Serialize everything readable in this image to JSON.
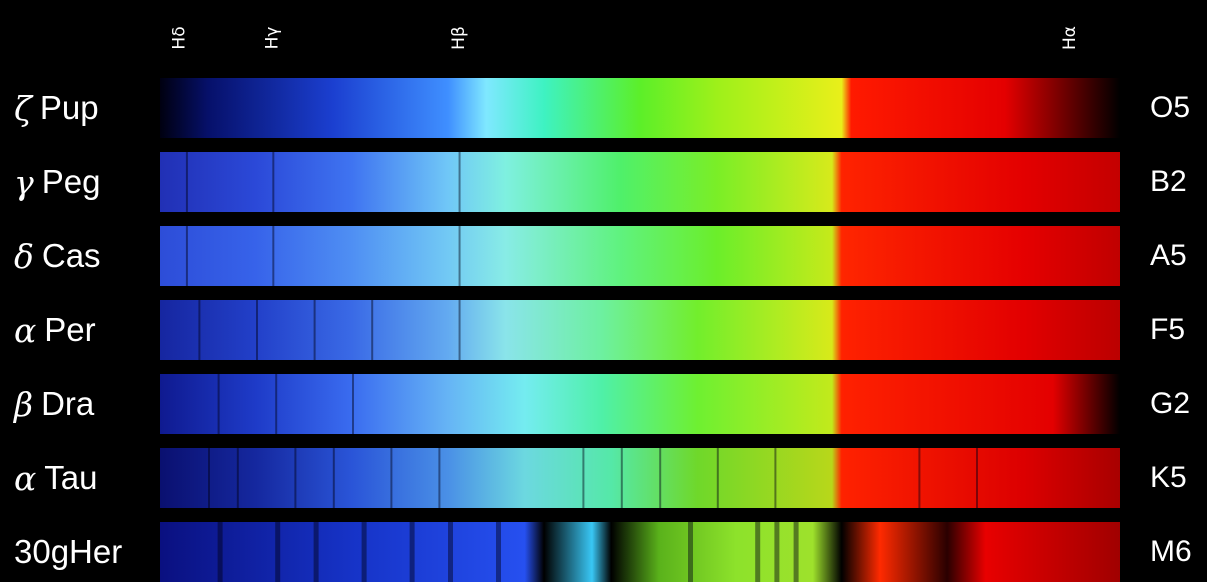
{
  "line_labels": [
    {
      "id": "hdelta",
      "text": "Hδ",
      "pos": 0.02
    },
    {
      "id": "hgamma",
      "text": "Hγ",
      "pos": 0.117
    },
    {
      "id": "hbeta",
      "text": "Hβ",
      "pos": 0.311
    },
    {
      "id": "halpha",
      "text": "Hα",
      "pos": 0.948
    }
  ],
  "stars": [
    {
      "symbol": "ζ",
      "name": "Pup",
      "class": "O5",
      "stops": [
        "#000010",
        "#06106a",
        "#1b3fd0",
        "#3f8fff",
        "#7fe8ff",
        "#3ef2c2",
        "#5cef29",
        "#9ef01a",
        "#e9ef1a",
        "#ff1a00",
        "#e40000",
        "#000000"
      ],
      "offsets": [
        0,
        0.05,
        0.18,
        0.3,
        0.34,
        0.4,
        0.5,
        0.58,
        0.71,
        0.72,
        0.88,
        1
      ],
      "lines": [],
      "dark": 0
    },
    {
      "symbol": "γ",
      "name": "Peg",
      "class": "B2",
      "stops": [
        "#2130b5",
        "#2b49d8",
        "#3f74f1",
        "#70c7f7",
        "#7ff0e0",
        "#4ff06a",
        "#7aee27",
        "#d7ea1b",
        "#ff2300",
        "#e30000",
        "#c40000"
      ],
      "offsets": [
        0,
        0.1,
        0.2,
        0.3,
        0.36,
        0.48,
        0.58,
        0.7,
        0.71,
        0.9,
        1
      ],
      "lines": [
        0.027,
        0.117,
        0.311
      ],
      "dark": 0
    },
    {
      "symbol": "δ",
      "name": "Cas",
      "class": "A5",
      "stops": [
        "#2d4dd8",
        "#3763ea",
        "#4f8ff3",
        "#72c9f4",
        "#88ece6",
        "#5ff27e",
        "#6bee2a",
        "#c6ea1a",
        "#ff2600",
        "#e50000",
        "#c00000"
      ],
      "offsets": [
        0,
        0.1,
        0.2,
        0.3,
        0.36,
        0.48,
        0.58,
        0.7,
        0.71,
        0.9,
        1
      ],
      "lines": [
        0.027,
        0.117,
        0.311
      ],
      "dark": 0
    },
    {
      "symbol": "α",
      "name": "Per",
      "class": "F5",
      "stops": [
        "#1626a0",
        "#2240c9",
        "#3a6ae6",
        "#63aaf0",
        "#8ae4ea",
        "#6df0a0",
        "#72ee2c",
        "#d8ea1a",
        "#ff2200",
        "#e20000",
        "#bb0000"
      ],
      "offsets": [
        0,
        0.1,
        0.2,
        0.3,
        0.36,
        0.46,
        0.56,
        0.7,
        0.71,
        0.9,
        1
      ],
      "lines": [
        0.04,
        0.1,
        0.16,
        0.22,
        0.311
      ],
      "dark": 0
    },
    {
      "symbol": "β",
      "name": "Dra",
      "class": "G2",
      "stops": [
        "#0f1a90",
        "#1e3bc8",
        "#3a6cf0",
        "#66b4f5",
        "#74ecf0",
        "#4ff0a8",
        "#6ef031",
        "#c2ea1b",
        "#ff2100",
        "#e30000",
        "#000000"
      ],
      "offsets": [
        0,
        0.1,
        0.2,
        0.3,
        0.38,
        0.46,
        0.56,
        0.7,
        0.71,
        0.93,
        1
      ],
      "lines": [
        0.06,
        0.12,
        0.2
      ],
      "dark": 0
    },
    {
      "symbol": "α",
      "name": "Tau",
      "class": "K5",
      "stops": [
        "#0a1070",
        "#15289f",
        "#2a55d8",
        "#4a90e6",
        "#6cd8e0",
        "#55e8a8",
        "#6fd82a",
        "#b8d71a",
        "#ff2200",
        "#dc0000",
        "#a80000"
      ],
      "offsets": [
        0,
        0.1,
        0.2,
        0.3,
        0.38,
        0.47,
        0.56,
        0.7,
        0.71,
        0.9,
        1
      ],
      "lines": [
        0.05,
        0.08,
        0.14,
        0.18,
        0.24,
        0.29,
        0.44,
        0.48,
        0.52,
        0.58,
        0.64,
        0.79,
        0.85
      ],
      "dark": 0
    },
    {
      "symbol": "",
      "name": "30gHer",
      "class": "M6",
      "stops": [
        "#0a1080",
        "#1633c7",
        "#2650f0",
        "#000000",
        "#39c7f5",
        "#000000",
        "#5ab21b",
        "#8de22b",
        "#9ee12c",
        "#000000",
        "#ff2a00",
        "#2a0000",
        "#e80000",
        "#a00000"
      ],
      "offsets": [
        0,
        0.2,
        0.38,
        0.4,
        0.45,
        0.47,
        0.52,
        0.6,
        0.68,
        0.71,
        0.75,
        0.82,
        0.86,
        1
      ],
      "lines": [
        0.06,
        0.12,
        0.16,
        0.21,
        0.26,
        0.3,
        0.35,
        0.55,
        0.62,
        0.64,
        0.66
      ],
      "dark": 1
    }
  ]
}
